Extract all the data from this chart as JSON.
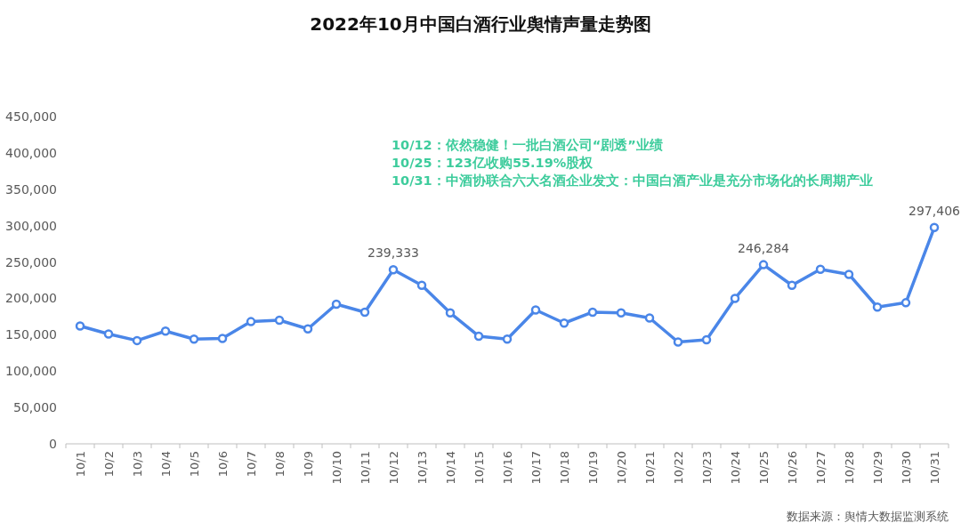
{
  "chart_data": {
    "type": "line",
    "title": "2022年10月中国白酒行业舆情声量走势图",
    "categories": [
      "10/1",
      "10/2",
      "10/3",
      "10/4",
      "10/5",
      "10/6",
      "10/7",
      "10/8",
      "10/9",
      "10/10",
      "10/11",
      "10/12",
      "10/13",
      "10/14",
      "10/15",
      "10/16",
      "10/17",
      "10/18",
      "10/19",
      "10/20",
      "10/21",
      "10/22",
      "10/23",
      "10/24",
      "10/25",
      "10/26",
      "10/27",
      "10/28",
      "10/29",
      "10/30",
      "10/31"
    ],
    "series": [
      {
        "color": "#4a86e8",
        "values": [
          162000,
          151000,
          142000,
          155000,
          144000,
          145000,
          168000,
          170000,
          158000,
          192000,
          181000,
          239333,
          218000,
          180000,
          148000,
          144000,
          184000,
          166000,
          181000,
          180000,
          173000,
          140000,
          143000,
          200000,
          246284,
          218000,
          240000,
          233000,
          188000,
          194000,
          297406
        ],
        "value_labels": [
          null,
          null,
          null,
          null,
          null,
          null,
          null,
          null,
          null,
          null,
          null,
          "239,333",
          null,
          null,
          null,
          null,
          null,
          null,
          null,
          null,
          null,
          null,
          null,
          null,
          "246,284",
          null,
          null,
          null,
          null,
          null,
          "297,406"
        ]
      }
    ],
    "ylim": [
      0,
      450000
    ],
    "yticks": [
      {
        "value": 0,
        "label": "0"
      },
      {
        "value": 50000,
        "label": "50,000"
      },
      {
        "value": 100000,
        "label": "100,000"
      },
      {
        "value": 150000,
        "label": "150,000"
      },
      {
        "value": 200000,
        "label": "200,000"
      },
      {
        "value": 250000,
        "label": "250,000"
      },
      {
        "value": 300000,
        "label": "300,000"
      },
      {
        "value": 350000,
        "label": "350,000"
      },
      {
        "value": 400000,
        "label": "400,000"
      },
      {
        "value": 450000,
        "label": "450,000"
      }
    ],
    "grid": false,
    "marker": "circle",
    "line_style": "solid",
    "annotations": [
      "10/12：依然稳健！一批白酒公司“剧透”业绩",
      "10/25：123亿收购55.19%股权",
      "10/31：中酒协联合六大名酒企业发文：中国白酒产业是充分市场化的长周期产业",
      "数据来源：舆情大数据监测系统"
    ]
  }
}
